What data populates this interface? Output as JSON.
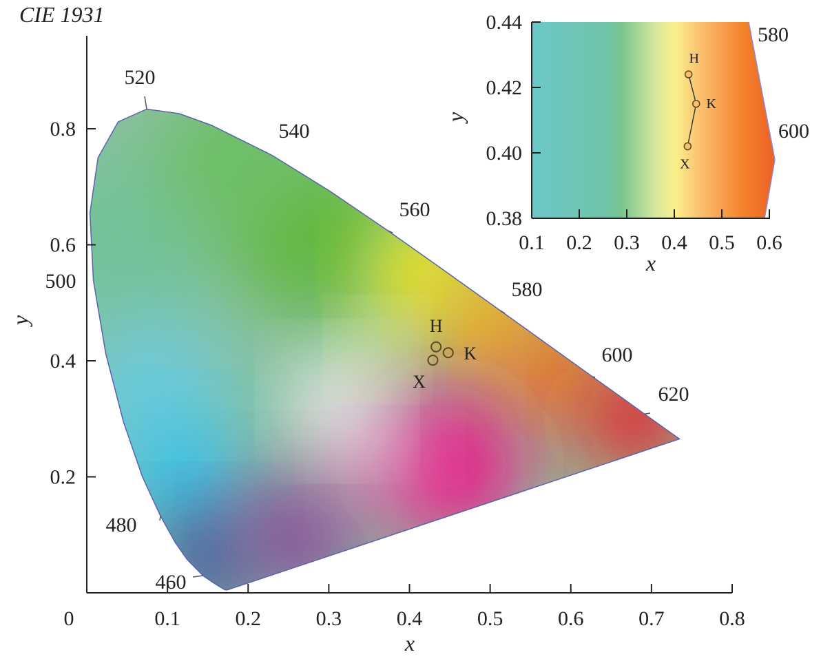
{
  "chart_data": [
    {
      "type": "scatter",
      "title": "CIE 1931",
      "xlabel": "x",
      "ylabel": "y",
      "xlim": [
        0,
        0.8
      ],
      "ylim": [
        0,
        0.95
      ],
      "xticks": [
        "0",
        "0.1",
        "0.2",
        "0.3",
        "0.4",
        "0.5",
        "0.6",
        "0.7",
        "0.8"
      ],
      "yticks": [
        "0.2",
        "0.4",
        "0.6",
        "0.8"
      ],
      "wavelength_labels": [
        "460",
        "480",
        "500",
        "520",
        "540",
        "560",
        "580",
        "600",
        "620"
      ],
      "points": [
        {
          "label": "H",
          "x": 0.433,
          "y": 0.424
        },
        {
          "label": "K",
          "x": 0.448,
          "y": 0.414
        },
        {
          "label": "X",
          "x": 0.429,
          "y": 0.401
        }
      ],
      "grid": false
    },
    {
      "type": "line",
      "xlabel": "x",
      "ylabel": "y",
      "xlim": [
        0.1,
        0.6
      ],
      "ylim": [
        0.38,
        0.44
      ],
      "xticks": [
        "0.1",
        "0.2",
        "0.3",
        "0.4",
        "0.5",
        "0.6"
      ],
      "yticks": [
        "0.38",
        "0.40",
        "0.42",
        "0.44"
      ],
      "wavelength_labels": [
        "580",
        "600"
      ],
      "points": [
        {
          "label": "H",
          "x": 0.43,
          "y": 0.424
        },
        {
          "label": "K",
          "x": 0.446,
          "y": 0.415
        },
        {
          "label": "X",
          "x": 0.428,
          "y": 0.402
        }
      ],
      "grid": false
    }
  ]
}
